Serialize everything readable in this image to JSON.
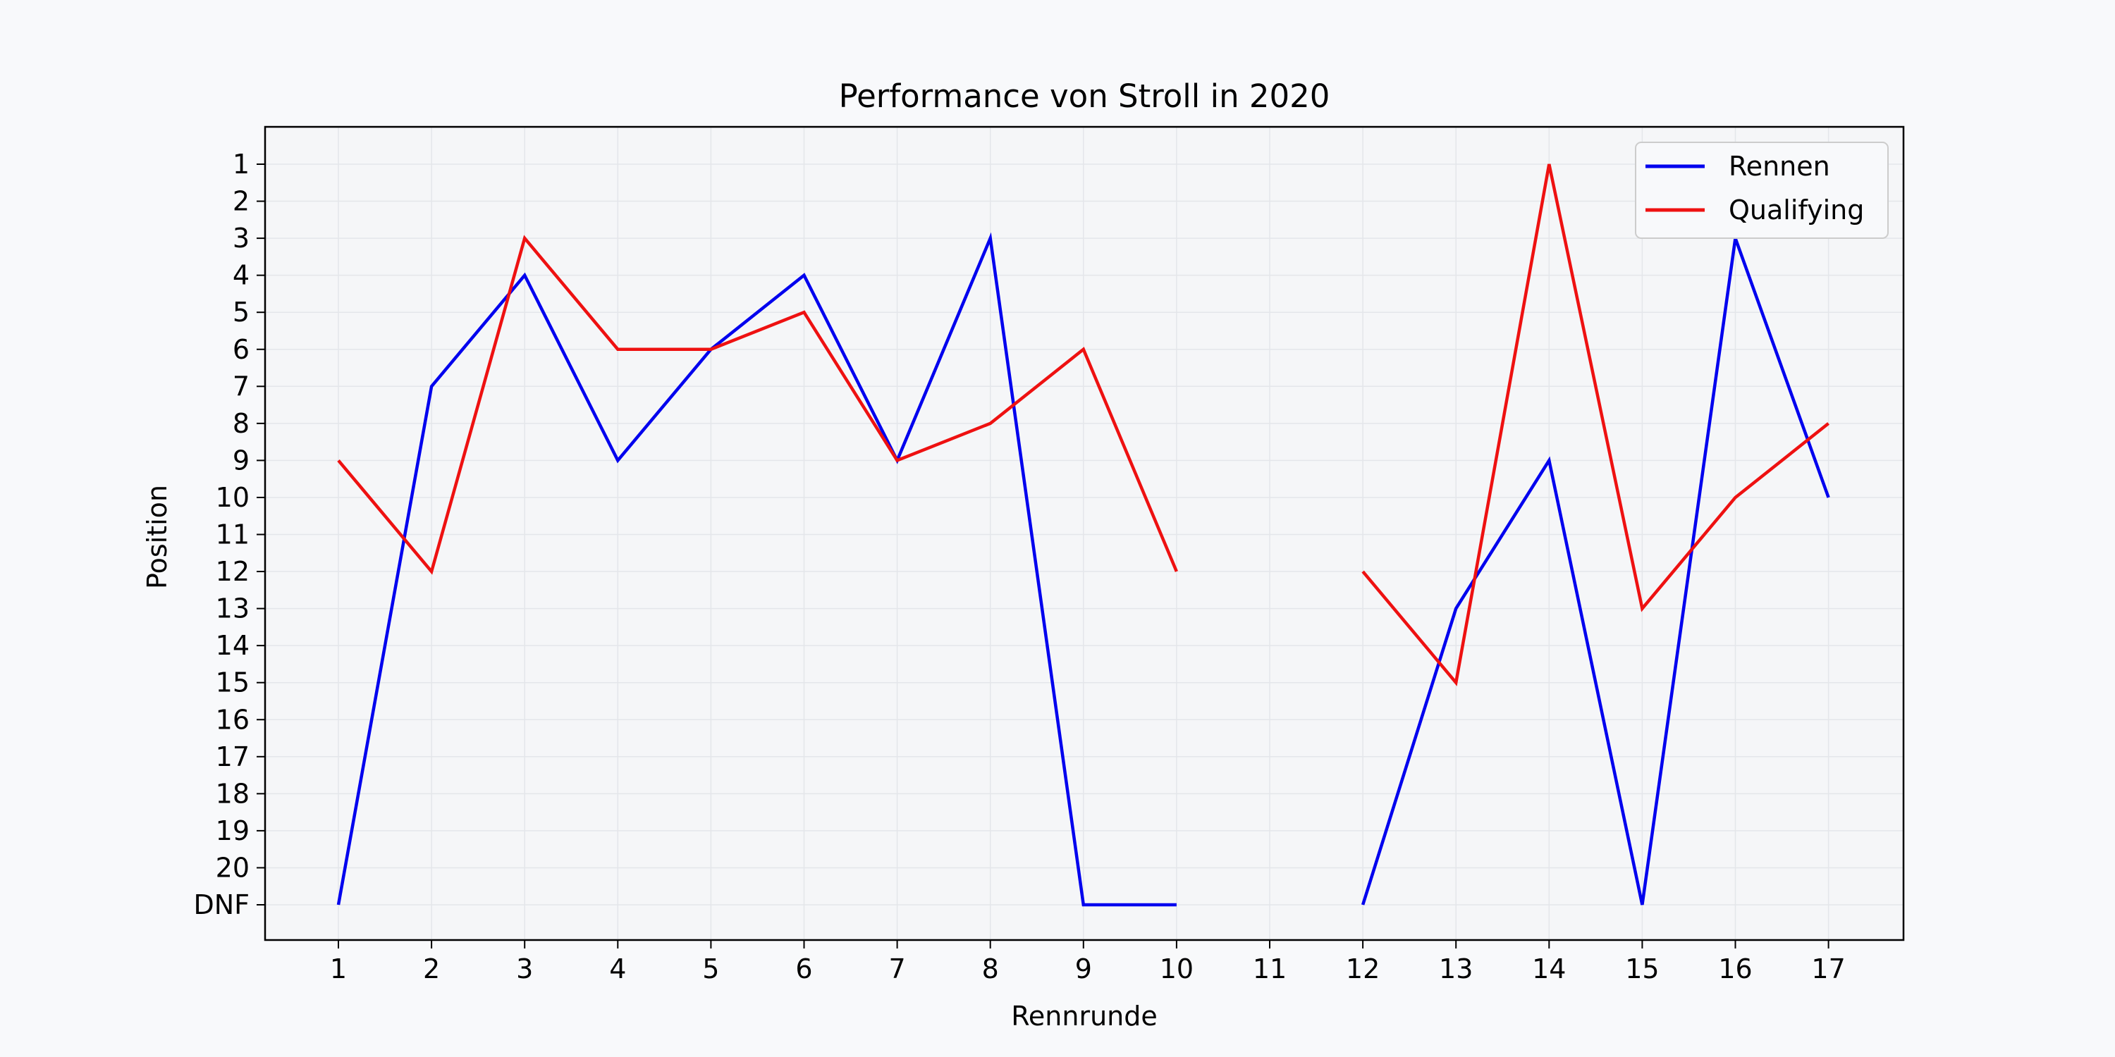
{
  "chart_data": {
    "type": "line",
    "title": "Performance von Stroll in 2020",
    "xlabel": "Rennrunde",
    "ylabel": "Position",
    "x_ticks": [
      1,
      2,
      3,
      4,
      5,
      6,
      7,
      8,
      9,
      10,
      11,
      12,
      13,
      14,
      15,
      16,
      17
    ],
    "y_ticks": [
      "1",
      "2",
      "3",
      "4",
      "5",
      "6",
      "7",
      "8",
      "9",
      "10",
      "11",
      "12",
      "13",
      "14",
      "15",
      "16",
      "17",
      "18",
      "19",
      "20",
      "DNF"
    ],
    "y_inverted": true,
    "grid": true,
    "legend_position": "top-right",
    "series": [
      {
        "name": "Rennen",
        "color": "#0000ee",
        "x": [
          1,
          2,
          3,
          4,
          5,
          6,
          7,
          8,
          9,
          10,
          11,
          12,
          13,
          14,
          15,
          16,
          17
        ],
        "values": [
          "DNF",
          7,
          4,
          9,
          6,
          4,
          9,
          3,
          "DNF",
          "DNF",
          null,
          "DNF",
          13,
          9,
          "DNF",
          3,
          10
        ]
      },
      {
        "name": "Qualifying",
        "color": "#ee1111",
        "x": [
          1,
          2,
          3,
          4,
          5,
          6,
          7,
          8,
          9,
          10,
          11,
          12,
          13,
          14,
          15,
          16,
          17
        ],
        "values": [
          9,
          12,
          3,
          6,
          6,
          5,
          9,
          8,
          6,
          12,
          null,
          12,
          15,
          1,
          13,
          10,
          8
        ]
      }
    ]
  }
}
